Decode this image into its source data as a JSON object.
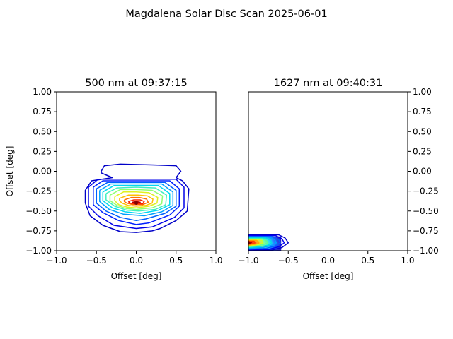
{
  "figure": {
    "title": "Magdalena Solar Disc Scan 2025-06-01"
  },
  "chart_data": [
    {
      "type": "contour",
      "title": "500 nm at 09:37:15",
      "xlabel": "Offset [deg]",
      "ylabel": "Offset [deg]",
      "xlim": [
        -1.0,
        1.0
      ],
      "ylim": [
        -1.0,
        1.0
      ],
      "xticks": [
        "−1.0",
        "−0.5",
        "0.0",
        "0.5",
        "1.0"
      ],
      "yticks": [
        "−1.00",
        "−0.75",
        "−0.50",
        "−0.25",
        "0.00",
        "0.25",
        "0.50",
        "0.75",
        "1.00"
      ],
      "yaxis_side": "left",
      "grid": false,
      "colormap": "jet",
      "peak": {
        "x": 0.0,
        "y": -0.4
      },
      "contours": [
        {
          "level": 1,
          "color": "#0000c8",
          "points": [
            [
              -0.44,
              0.0
            ],
            [
              -0.4,
              0.07
            ],
            [
              -0.2,
              0.09
            ],
            [
              0.2,
              0.08
            ],
            [
              0.5,
              0.07
            ],
            [
              0.56,
              0.0
            ],
            [
              0.5,
              -0.08
            ],
            [
              0.58,
              -0.12
            ],
            [
              0.66,
              -0.22
            ],
            [
              0.64,
              -0.5
            ],
            [
              0.5,
              -0.62
            ],
            [
              0.3,
              -0.72
            ],
            [
              0.2,
              -0.75
            ],
            [
              0.0,
              -0.77
            ],
            [
              -0.2,
              -0.76
            ],
            [
              -0.42,
              -0.68
            ],
            [
              -0.58,
              -0.56
            ],
            [
              -0.64,
              -0.4
            ],
            [
              -0.64,
              -0.24
            ],
            [
              -0.56,
              -0.12
            ],
            [
              -0.3,
              -0.08
            ],
            [
              -0.44,
              -0.02
            ],
            [
              -0.44,
              0.0
            ]
          ]
        },
        {
          "level": 2,
          "color": "#0000e8",
          "points": [
            [
              -0.6,
              -0.2
            ],
            [
              -0.48,
              -0.1
            ],
            [
              0.0,
              -0.1
            ],
            [
              0.5,
              -0.1
            ],
            [
              0.6,
              -0.2
            ],
            [
              0.6,
              -0.46
            ],
            [
              0.48,
              -0.58
            ],
            [
              0.2,
              -0.7
            ],
            [
              0.0,
              -0.72
            ],
            [
              -0.28,
              -0.68
            ],
            [
              -0.48,
              -0.56
            ],
            [
              -0.6,
              -0.44
            ],
            [
              -0.6,
              -0.2
            ]
          ]
        },
        {
          "level": 3,
          "color": "#0020ff",
          "points": [
            [
              -0.54,
              -0.2
            ],
            [
              -0.42,
              -0.12
            ],
            [
              0.0,
              -0.12
            ],
            [
              0.42,
              -0.12
            ],
            [
              0.54,
              -0.22
            ],
            [
              0.54,
              -0.44
            ],
            [
              0.42,
              -0.55
            ],
            [
              0.16,
              -0.65
            ],
            [
              0.0,
              -0.67
            ],
            [
              -0.22,
              -0.62
            ],
            [
              -0.42,
              -0.52
            ],
            [
              -0.54,
              -0.42
            ],
            [
              -0.54,
              -0.2
            ]
          ]
        },
        {
          "level": 4,
          "color": "#0060ff",
          "points": [
            [
              -0.5,
              -0.22
            ],
            [
              -0.36,
              -0.14
            ],
            [
              0.0,
              -0.14
            ],
            [
              0.36,
              -0.14
            ],
            [
              0.5,
              -0.24
            ],
            [
              0.5,
              -0.44
            ],
            [
              0.36,
              -0.53
            ],
            [
              0.12,
              -0.6
            ],
            [
              0.0,
              -0.62
            ],
            [
              -0.2,
              -0.58
            ],
            [
              -0.38,
              -0.5
            ],
            [
              -0.5,
              -0.4
            ],
            [
              -0.5,
              -0.22
            ]
          ]
        },
        {
          "level": 5,
          "color": "#00a0ff",
          "points": [
            [
              -0.46,
              -0.24
            ],
            [
              -0.32,
              -0.16
            ],
            [
              0.0,
              -0.16
            ],
            [
              0.32,
              -0.16
            ],
            [
              0.46,
              -0.26
            ],
            [
              0.46,
              -0.43
            ],
            [
              0.32,
              -0.51
            ],
            [
              0.1,
              -0.56
            ],
            [
              -0.16,
              -0.54
            ],
            [
              -0.34,
              -0.48
            ],
            [
              -0.46,
              -0.38
            ],
            [
              -0.46,
              -0.24
            ]
          ]
        },
        {
          "level": 6,
          "color": "#00d8f0",
          "points": [
            [
              -0.42,
              -0.26
            ],
            [
              -0.28,
              -0.18
            ],
            [
              0.0,
              -0.18
            ],
            [
              0.28,
              -0.18
            ],
            [
              0.42,
              -0.28
            ],
            [
              0.42,
              -0.42
            ],
            [
              0.28,
              -0.49
            ],
            [
              0.05,
              -0.53
            ],
            [
              -0.14,
              -0.51
            ],
            [
              -0.3,
              -0.46
            ],
            [
              -0.42,
              -0.37
            ],
            [
              -0.42,
              -0.26
            ]
          ]
        },
        {
          "level": 7,
          "color": "#40f0c0",
          "points": [
            [
              -0.38,
              -0.28
            ],
            [
              -0.24,
              -0.21
            ],
            [
              0.0,
              -0.2
            ],
            [
              0.24,
              -0.21
            ],
            [
              0.38,
              -0.3
            ],
            [
              0.37,
              -0.42
            ],
            [
              0.24,
              -0.48
            ],
            [
              0.03,
              -0.5
            ],
            [
              -0.12,
              -0.49
            ],
            [
              -0.27,
              -0.44
            ],
            [
              -0.38,
              -0.36
            ],
            [
              -0.38,
              -0.28
            ]
          ]
        },
        {
          "level": 8,
          "color": "#90ff70",
          "points": [
            [
              -0.33,
              -0.3
            ],
            [
              -0.2,
              -0.23
            ],
            [
              0.0,
              -0.23
            ],
            [
              0.2,
              -0.24
            ],
            [
              0.33,
              -0.31
            ],
            [
              0.32,
              -0.41
            ],
            [
              0.2,
              -0.46
            ],
            [
              0.0,
              -0.48
            ],
            [
              -0.12,
              -0.47
            ],
            [
              -0.24,
              -0.43
            ],
            [
              -0.33,
              -0.37
            ],
            [
              -0.33,
              -0.3
            ]
          ]
        },
        {
          "level": 9,
          "color": "#e0f020",
          "points": [
            [
              -0.27,
              -0.32
            ],
            [
              -0.16,
              -0.26
            ],
            [
              0.0,
              -0.26
            ],
            [
              0.16,
              -0.27
            ],
            [
              0.27,
              -0.33
            ],
            [
              0.26,
              -0.4
            ],
            [
              0.16,
              -0.44
            ],
            [
              0.0,
              -0.46
            ],
            [
              -0.12,
              -0.45
            ],
            [
              -0.22,
              -0.42
            ],
            [
              -0.27,
              -0.37
            ],
            [
              -0.27,
              -0.32
            ]
          ]
        },
        {
          "level": 10,
          "color": "#ffc000",
          "points": [
            [
              -0.21,
              -0.34
            ],
            [
              -0.1,
              -0.3
            ],
            [
              0.02,
              -0.3
            ],
            [
              0.14,
              -0.31
            ],
            [
              0.21,
              -0.35
            ],
            [
              0.2,
              -0.4
            ],
            [
              0.12,
              -0.43
            ],
            [
              0.0,
              -0.44
            ],
            [
              -0.1,
              -0.43
            ],
            [
              -0.18,
              -0.4
            ],
            [
              -0.21,
              -0.37
            ],
            [
              -0.21,
              -0.34
            ]
          ]
        },
        {
          "level": 11,
          "color": "#ff7000",
          "points": [
            [
              -0.15,
              -0.36
            ],
            [
              -0.06,
              -0.33
            ],
            [
              0.04,
              -0.33
            ],
            [
              0.13,
              -0.35
            ],
            [
              0.15,
              -0.39
            ],
            [
              0.08,
              -0.42
            ],
            [
              -0.04,
              -0.42
            ],
            [
              -0.12,
              -0.4
            ],
            [
              -0.15,
              -0.38
            ],
            [
              -0.15,
              -0.36
            ]
          ]
        },
        {
          "level": 12,
          "color": "#ff2000",
          "points": [
            [
              -0.1,
              -0.38
            ],
            [
              -0.03,
              -0.36
            ],
            [
              0.05,
              -0.36
            ],
            [
              0.1,
              -0.38
            ],
            [
              0.08,
              -0.41
            ],
            [
              -0.02,
              -0.41
            ],
            [
              -0.08,
              -0.4
            ],
            [
              -0.1,
              -0.38
            ]
          ]
        },
        {
          "level": 13,
          "color": "#b00000",
          "points": [
            [
              -0.05,
              -0.39
            ],
            [
              0.0,
              -0.38
            ],
            [
              0.05,
              -0.39
            ],
            [
              0.0,
              -0.4
            ],
            [
              -0.05,
              -0.39
            ]
          ]
        }
      ]
    },
    {
      "type": "contour",
      "title": "1627 nm at 09:40:31",
      "xlabel": "Offset [deg]",
      "ylabel": "",
      "xlim": [
        -1.0,
        1.0
      ],
      "ylim": [
        -1.0,
        1.0
      ],
      "xticks": [
        "−1.0",
        "−0.5",
        "0.0",
        "0.5",
        "1.0"
      ],
      "yticks": [
        "−1.00",
        "−0.75",
        "−0.50",
        "−0.25",
        "0.00",
        "0.25",
        "0.50",
        "0.75",
        "1.00"
      ],
      "yaxis_side": "right",
      "grid": false,
      "colormap": "jet",
      "peak": {
        "x": -1.0,
        "y": -0.9
      },
      "filled_edge_band": {
        "x_from": -1.0,
        "x_to": -0.5,
        "y_from": -1.0,
        "y_to": -0.82
      },
      "contours": [
        {
          "level": 1,
          "color": "#0000c8",
          "points": [
            [
              -1.0,
              -0.8
            ],
            [
              -0.62,
              -0.8
            ],
            [
              -0.54,
              -0.84
            ],
            [
              -0.5,
              -0.9
            ],
            [
              -0.58,
              -0.96
            ],
            [
              -0.7,
              -0.99
            ],
            [
              -1.0,
              -1.0
            ]
          ]
        },
        {
          "level": 2,
          "color": "#0000f0",
          "points": [
            [
              -1.0,
              -0.81
            ],
            [
              -0.66,
              -0.81
            ],
            [
              -0.58,
              -0.85
            ],
            [
              -0.55,
              -0.9
            ],
            [
              -0.62,
              -0.95
            ],
            [
              -0.74,
              -0.98
            ],
            [
              -1.0,
              -0.99
            ]
          ]
        },
        {
          "level": 3,
          "color": "#0060ff",
          "points": [
            [
              -1.0,
              -0.82
            ],
            [
              -0.7,
              -0.82
            ],
            [
              -0.62,
              -0.86
            ],
            [
              -0.6,
              -0.9
            ],
            [
              -0.66,
              -0.94
            ],
            [
              -0.78,
              -0.97
            ],
            [
              -1.0,
              -0.98
            ]
          ]
        },
        {
          "level": 4,
          "color": "#00a0ff",
          "points": [
            [
              -1.0,
              -0.83
            ],
            [
              -0.74,
              -0.83
            ],
            [
              -0.67,
              -0.86
            ],
            [
              -0.65,
              -0.9
            ],
            [
              -0.7,
              -0.93
            ],
            [
              -0.82,
              -0.96
            ],
            [
              -1.0,
              -0.97
            ]
          ]
        },
        {
          "level": 5,
          "color": "#00e0e0",
          "points": [
            [
              -1.0,
              -0.84
            ],
            [
              -0.78,
              -0.84
            ],
            [
              -0.72,
              -0.87
            ],
            [
              -0.71,
              -0.9
            ],
            [
              -0.75,
              -0.93
            ],
            [
              -0.86,
              -0.95
            ],
            [
              -1.0,
              -0.96
            ]
          ]
        },
        {
          "level": 6,
          "color": "#60ff90",
          "points": [
            [
              -1.0,
              -0.85
            ],
            [
              -0.82,
              -0.85
            ],
            [
              -0.77,
              -0.88
            ],
            [
              -0.76,
              -0.9
            ],
            [
              -0.8,
              -0.92
            ],
            [
              -0.9,
              -0.94
            ],
            [
              -1.0,
              -0.95
            ]
          ]
        },
        {
          "level": 7,
          "color": "#d0ff20",
          "points": [
            [
              -1.0,
              -0.86
            ],
            [
              -0.86,
              -0.86
            ],
            [
              -0.82,
              -0.88
            ],
            [
              -0.82,
              -0.9
            ],
            [
              -0.86,
              -0.92
            ],
            [
              -0.93,
              -0.93
            ],
            [
              -1.0,
              -0.94
            ]
          ]
        },
        {
          "level": 8,
          "color": "#ffb000",
          "points": [
            [
              -1.0,
              -0.87
            ],
            [
              -0.9,
              -0.87
            ],
            [
              -0.87,
              -0.89
            ],
            [
              -0.87,
              -0.91
            ],
            [
              -0.92,
              -0.92
            ],
            [
              -1.0,
              -0.93
            ]
          ]
        },
        {
          "level": 9,
          "color": "#ff4000",
          "points": [
            [
              -1.0,
              -0.88
            ],
            [
              -0.93,
              -0.88
            ],
            [
              -0.92,
              -0.9
            ],
            [
              -0.95,
              -0.91
            ],
            [
              -1.0,
              -0.92
            ]
          ]
        },
        {
          "level": 10,
          "color": "#c00000",
          "points": [
            [
              -1.0,
              -0.89
            ],
            [
              -0.96,
              -0.895
            ],
            [
              -0.97,
              -0.905
            ],
            [
              -1.0,
              -0.91
            ]
          ]
        }
      ]
    }
  ]
}
